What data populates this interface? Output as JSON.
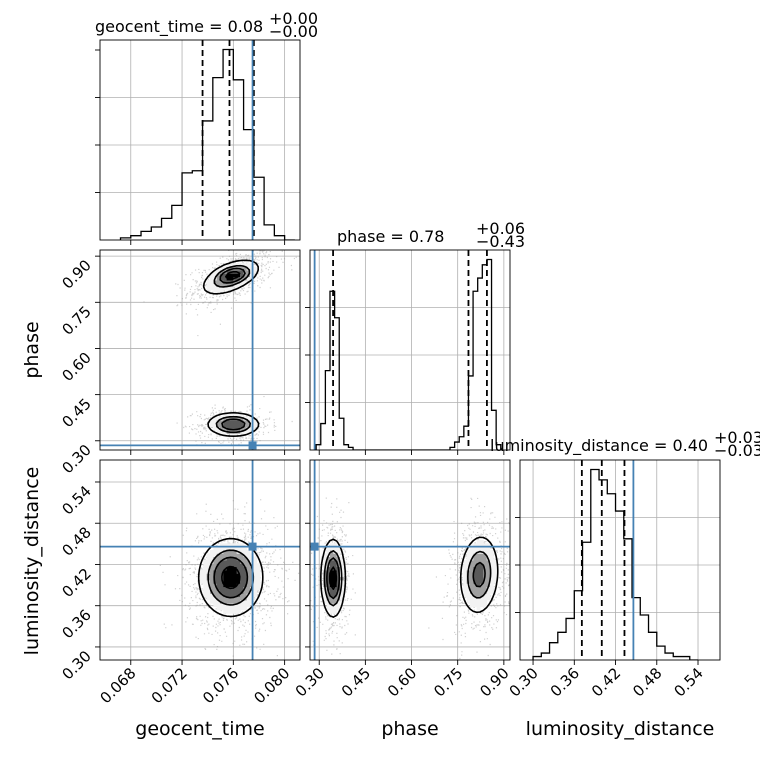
{
  "chart_data": {
    "type": "corner",
    "parameters": [
      "geocent_time",
      "phase",
      "luminosity_distance"
    ],
    "truths": {
      "geocent_time": 0.0775,
      "phase": 0.285,
      "luminosity_distance": 0.446
    },
    "titles": [
      {
        "param": "geocent_time",
        "text": "geocent_time = 0.08",
        "sup": "+0.00",
        "sub": "−0.00"
      },
      {
        "param": "phase",
        "text": "phase = 0.78",
        "sup": "+0.06",
        "sub": "−0.43"
      },
      {
        "param": "luminosity_distance",
        "text": "luminosity_distance = 0.40",
        "sup": "+0.03",
        "sub": "−0.03"
      }
    ],
    "axes": {
      "geocent_time": {
        "range": [
          0.0656,
          0.0812
        ],
        "ticks": [
          "0.068",
          "0.072",
          "0.076",
          "0.080"
        ],
        "tick_values": [
          0.068,
          0.072,
          0.076,
          0.08
        ]
      },
      "phase": {
        "range": [
          0.27,
          0.92
        ],
        "ticks": [
          "0.30",
          "0.45",
          "0.60",
          "0.75",
          "0.90"
        ],
        "tick_values": [
          0.3,
          0.45,
          0.6,
          0.75,
          0.9
        ]
      },
      "luminosity_distance": {
        "range": [
          0.281,
          0.572
        ],
        "ticks": [
          "0.30",
          "0.36",
          "0.42",
          "0.48",
          "0.54"
        ],
        "tick_values": [
          0.3,
          0.36,
          0.42,
          0.48,
          0.54
        ]
      }
    },
    "histograms": {
      "geocent_time": {
        "edges": [
          0.0672,
          0.068,
          0.0688,
          0.0696,
          0.0704,
          0.0712,
          0.072,
          0.0728,
          0.0736,
          0.0744,
          0.0752,
          0.076,
          0.0768,
          0.0776,
          0.0784,
          0.0792,
          0.08,
          0.0808
        ],
        "counts": [
          1,
          2,
          4,
          6,
          10,
          16,
          31,
          32,
          55,
          75,
          88,
          74,
          51,
          29,
          7,
          2,
          0
        ],
        "quantiles": [
          0.0736,
          0.0757,
          0.0776
        ]
      },
      "phase": {
        "edges": [
          0.29,
          0.305,
          0.32,
          0.335,
          0.35,
          0.365,
          0.38,
          0.395,
          0.41,
          0.425,
          0.44,
          0.455,
          0.47,
          0.485,
          0.5,
          0.515,
          0.53,
          0.545,
          0.56,
          0.575,
          0.59,
          0.605,
          0.62,
          0.635,
          0.65,
          0.665,
          0.68,
          0.695,
          0.71,
          0.725,
          0.74,
          0.755,
          0.77,
          0.785,
          0.8,
          0.815,
          0.83,
          0.845,
          0.86,
          0.875,
          0.89
        ],
        "counts": [
          2,
          10,
          30,
          60,
          50,
          12,
          2,
          1,
          0,
          0,
          0,
          0,
          0,
          0,
          0,
          0,
          0,
          0,
          0,
          0,
          0,
          0,
          0,
          0,
          0,
          0,
          0,
          0,
          0,
          1,
          3,
          5,
          9,
          28,
          60,
          65,
          70,
          72,
          15,
          2
        ],
        "quantiles": [
          0.345,
          0.785,
          0.845
        ]
      },
      "luminosity_distance": {
        "edges": [
          0.3,
          0.312,
          0.324,
          0.336,
          0.348,
          0.36,
          0.372,
          0.384,
          0.396,
          0.408,
          0.42,
          0.432,
          0.444,
          0.456,
          0.468,
          0.48,
          0.492,
          0.504,
          0.516,
          0.528,
          0.54
        ],
        "counts": [
          1,
          2,
          5,
          8,
          12,
          20,
          34,
          55,
          52,
          48,
          43,
          35,
          18,
          13,
          8,
          4,
          2,
          1,
          1,
          0
        ],
        "quantiles": [
          0.371,
          0.4,
          0.433
        ]
      }
    },
    "density_2d": [
      {
        "x": "geocent_time",
        "y": "phase",
        "blobs": [
          {
            "cx": 0.0758,
            "cy": 0.832,
            "sx": 0.00125,
            "sy": 0.032,
            "rho": 0.55,
            "weight": 0.48
          },
          {
            "cx": 0.076,
            "cy": 0.353,
            "sx": 0.00105,
            "sy": 0.02,
            "rho": 0.0,
            "weight": 0.42
          },
          {
            "cx": 0.076,
            "cy": 0.84,
            "sx": 0.0007,
            "sy": 0.015,
            "rho": 0.2,
            "weight": 0.1
          }
        ]
      },
      {
        "x": "geocent_time",
        "y": "luminosity_distance",
        "blobs": [
          {
            "cx": 0.0758,
            "cy": 0.401,
            "sx": 0.00128,
            "sy": 0.029,
            "rho": 0.0,
            "weight": 1.0
          }
        ]
      },
      {
        "x": "phase",
        "y": "luminosity_distance",
        "blobs": [
          {
            "cx": 0.345,
            "cy": 0.4,
            "sx": 0.02,
            "sy": 0.029,
            "rho": 0.0,
            "weight": 0.44
          },
          {
            "cx": 0.82,
            "cy": 0.405,
            "sx": 0.034,
            "sy": 0.031,
            "rho": 0.1,
            "weight": 0.56
          }
        ]
      }
    ],
    "contour_levels": [
      0.39,
      0.86
    ],
    "grid": true,
    "colors": {
      "histogram": "#000000",
      "truth": "#4682b4",
      "scatter": "#9a9a9a",
      "grid": "#b0b0b0"
    }
  }
}
